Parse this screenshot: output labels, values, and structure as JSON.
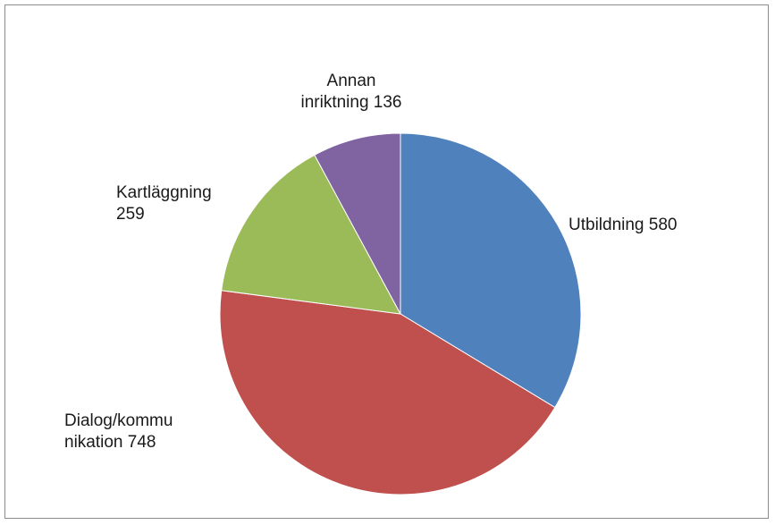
{
  "chart_data": {
    "type": "pie",
    "title": "",
    "legend": "none",
    "series": [
      {
        "values": [
          580,
          748,
          259,
          136
        ]
      }
    ],
    "categories": [
      "Utbildning",
      "Dialog/kommunikation",
      "Kartläggning",
      "Annan inriktning"
    ],
    "slices": [
      {
        "label_lines": [
          "Utbildning  580"
        ],
        "value": 580,
        "color": "#4f81bd"
      },
      {
        "label_lines": [
          "Dialog/kommu",
          "nikation 748"
        ],
        "value": 748,
        "color": "#c0504d"
      },
      {
        "label_lines": [
          "Kartläggning",
          "259"
        ],
        "value": 259,
        "color": "#9bbb59"
      },
      {
        "label_lines": [
          "Annan",
          "inriktning 136"
        ],
        "value": 136,
        "color": "#8064a2"
      }
    ]
  }
}
